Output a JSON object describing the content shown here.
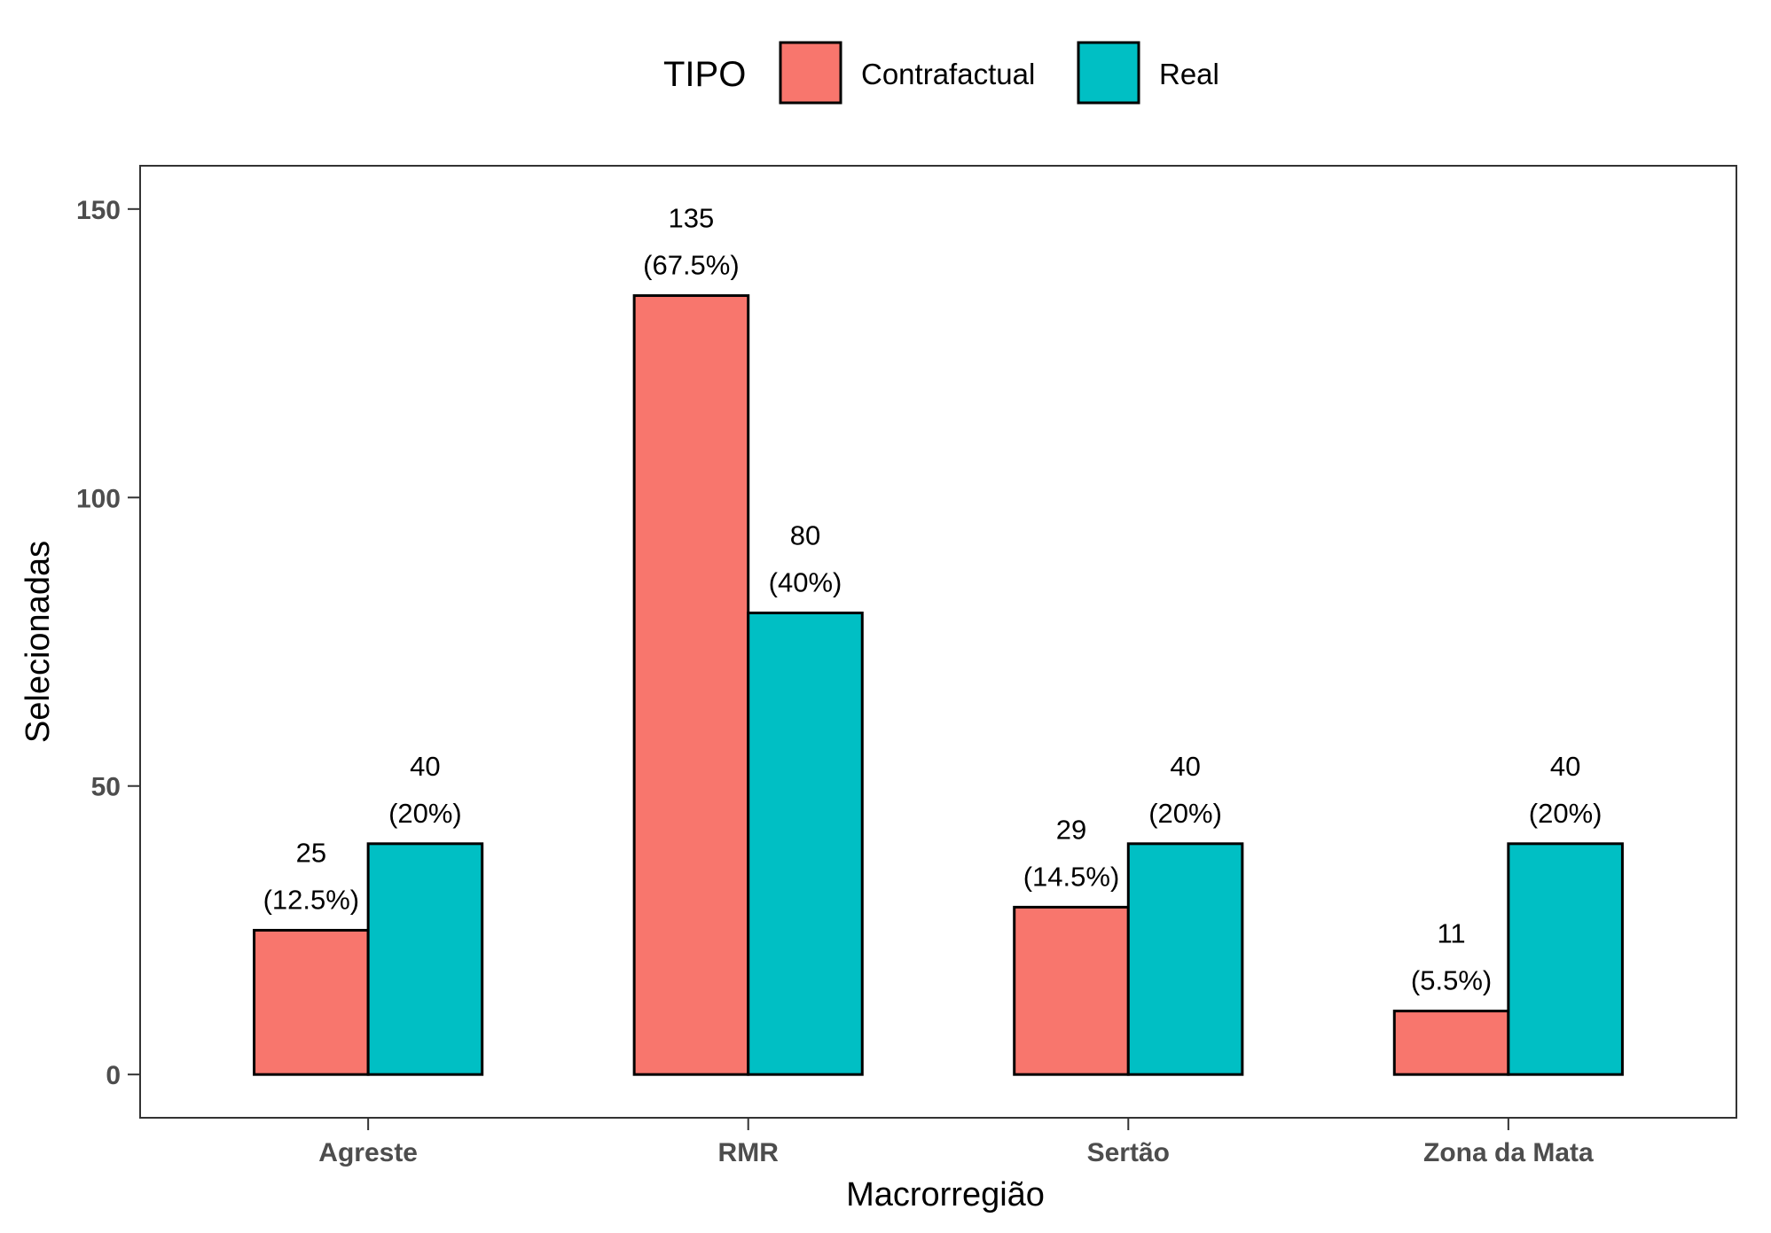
{
  "chart_data": {
    "type": "bar",
    "xlabel": "Macrorregião",
    "ylabel": "Selecionadas",
    "ylim": [
      -7.5,
      157.5
    ],
    "yticks": [
      0,
      50,
      100,
      150
    ],
    "categories": [
      "Agreste",
      "RMR",
      "Sertão",
      "Zona da Mata"
    ],
    "legend": {
      "title": "TIPO",
      "position": "top"
    },
    "series": [
      {
        "name": "Contrafactual",
        "color": "#F8766D",
        "values": [
          25,
          135,
          29,
          11
        ],
        "labels": [
          "25",
          "135",
          "29",
          "11"
        ],
        "pct_labels": [
          "(12.5%)",
          "(67.5%)",
          "(14.5%)",
          "(5.5%)"
        ]
      },
      {
        "name": "Real",
        "color": "#00BFC4",
        "values": [
          40,
          80,
          40,
          40
        ],
        "labels": [
          "40",
          "80",
          "40",
          "40"
        ],
        "pct_labels": [
          "(20%)",
          "(40%)",
          "(20%)",
          "(20%)"
        ]
      }
    ],
    "grid": false
  }
}
